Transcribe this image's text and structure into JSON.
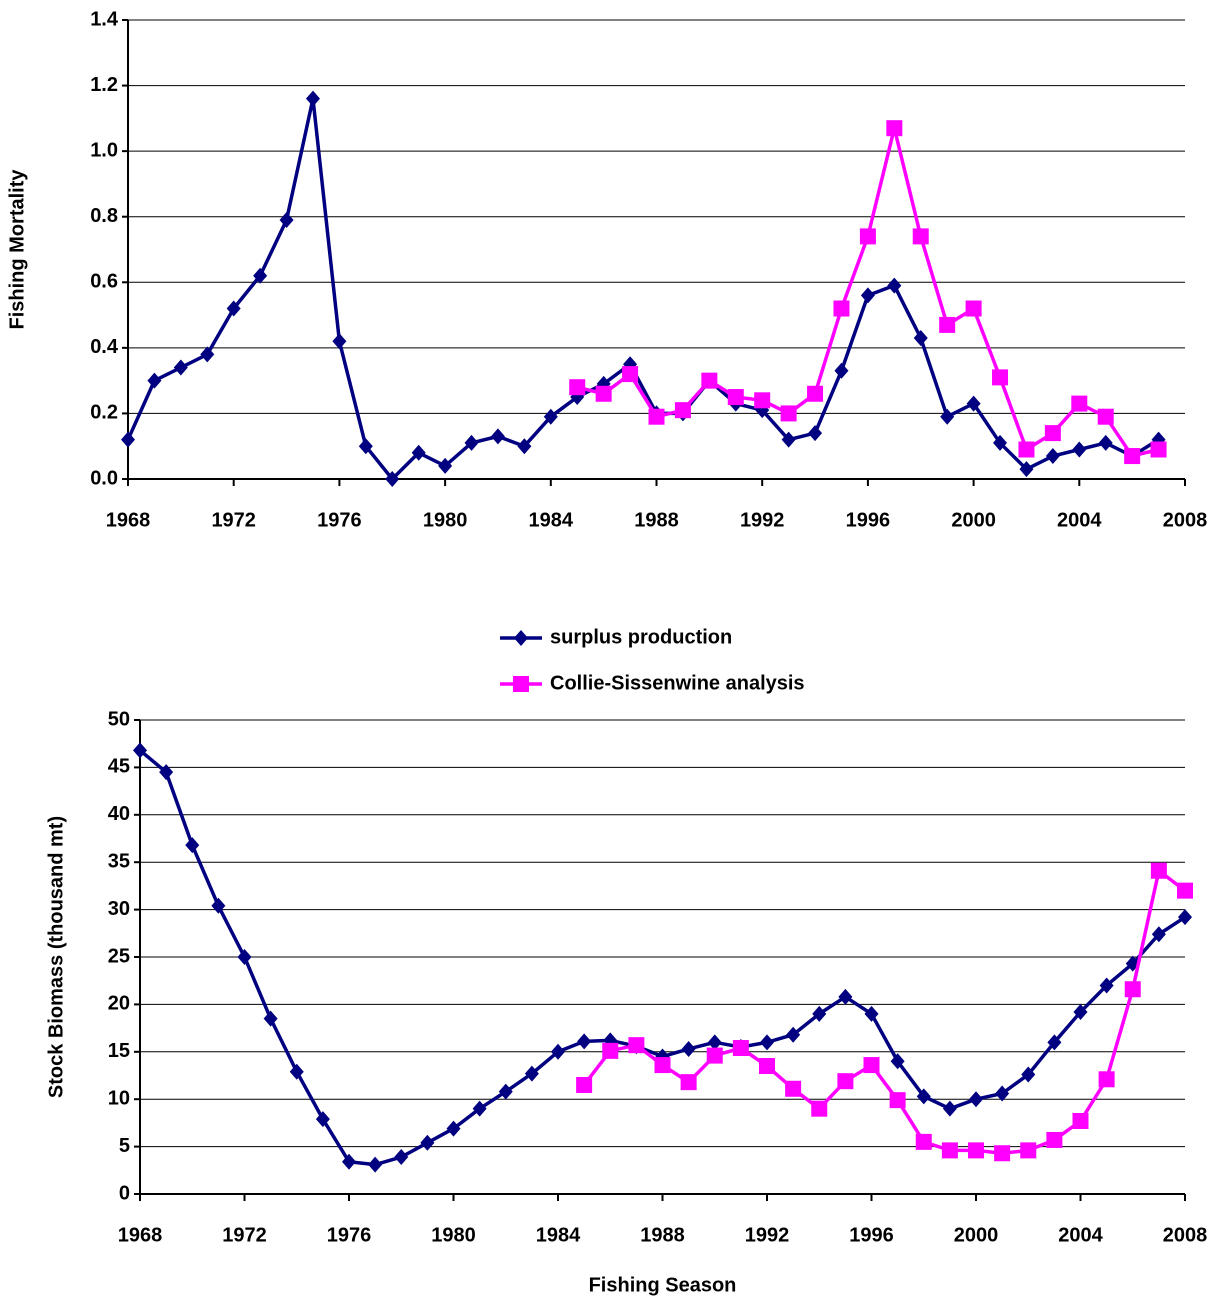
{
  "chart_data": [
    {
      "type": "line",
      "ylabel": "Fishing Mortality",
      "x": [
        1968,
        1969,
        1970,
        1971,
        1972,
        1973,
        1974,
        1975,
        1976,
        1977,
        1978,
        1979,
        1980,
        1981,
        1982,
        1983,
        1984,
        1985,
        1986,
        1987,
        1988,
        1989,
        1990,
        1991,
        1992,
        1993,
        1994,
        1995,
        1996,
        1997,
        1998,
        1999,
        2000,
        2001,
        2002,
        2003,
        2004,
        2005,
        2006,
        2007
      ],
      "series": [
        {
          "name": "surplus production",
          "color": "#000080",
          "marker": "diamond",
          "values": [
            0.12,
            0.3,
            0.34,
            0.38,
            0.52,
            0.62,
            0.79,
            1.16,
            0.42,
            0.1,
            0.0,
            0.08,
            0.04,
            0.11,
            0.13,
            0.1,
            0.19,
            0.25,
            0.29,
            0.35,
            0.2,
            0.2,
            0.3,
            0.23,
            0.21,
            0.12,
            0.14,
            0.33,
            0.56,
            0.59,
            0.43,
            0.19,
            0.23,
            0.11,
            0.03,
            0.07,
            0.09,
            0.11,
            0.07,
            0.12
          ]
        },
        {
          "name": "Collie-Sissenwine analysis",
          "color": "#ff00ff",
          "marker": "square",
          "values": [
            null,
            null,
            null,
            null,
            null,
            null,
            null,
            null,
            null,
            null,
            null,
            null,
            null,
            null,
            null,
            null,
            null,
            0.28,
            0.26,
            0.32,
            0.19,
            0.21,
            0.3,
            0.25,
            0.24,
            0.2,
            0.26,
            0.52,
            0.74,
            1.07,
            0.74,
            0.47,
            0.52,
            0.31,
            0.09,
            0.14,
            0.23,
            0.19,
            0.07,
            0.09
          ]
        }
      ],
      "xlim": [
        1968,
        2008
      ],
      "xticks": [
        1968,
        1972,
        1976,
        1980,
        1984,
        1988,
        1992,
        1996,
        2000,
        2004,
        2008
      ],
      "ylim": [
        0,
        1.4
      ],
      "yticks": [
        {
          "value": 0,
          "label": "0.0"
        },
        0.2,
        0.4,
        0.6,
        0.8,
        {
          "value": 1,
          "label": "1.0"
        },
        1.2,
        1.4
      ],
      "grid": true
    },
    {
      "type": "line",
      "ylabel": "Stock Biomass (thousand mt)",
      "xlabel": "Fishing Season",
      "x": [
        1968,
        1969,
        1970,
        1971,
        1972,
        1973,
        1974,
        1975,
        1976,
        1977,
        1978,
        1979,
        1980,
        1981,
        1982,
        1983,
        1984,
        1985,
        1986,
        1987,
        1988,
        1989,
        1990,
        1991,
        1992,
        1993,
        1994,
        1995,
        1996,
        1997,
        1998,
        1999,
        2000,
        2001,
        2002,
        2003,
        2004,
        2005,
        2006,
        2007,
        2008
      ],
      "series": [
        {
          "name": "surplus production",
          "color": "#000080",
          "marker": "diamond",
          "values": [
            46.8,
            44.5,
            36.8,
            30.4,
            25.0,
            18.5,
            12.9,
            7.9,
            3.4,
            3.1,
            3.9,
            5.4,
            6.9,
            9.0,
            10.8,
            12.7,
            15.0,
            16.1,
            16.2,
            15.6,
            14.5,
            15.3,
            16.0,
            15.5,
            16.0,
            16.8,
            19.0,
            20.8,
            19.0,
            14.0,
            10.3,
            9.0,
            10.0,
            10.6,
            12.6,
            16.0,
            19.2,
            22.0,
            24.3,
            27.4,
            29.2
          ]
        },
        {
          "name": "Collie-Sissenwine analysis",
          "color": "#ff00ff",
          "marker": "square",
          "values": [
            null,
            null,
            null,
            null,
            null,
            null,
            null,
            null,
            null,
            null,
            null,
            null,
            null,
            null,
            null,
            null,
            null,
            11.5,
            15.1,
            15.7,
            13.6,
            11.8,
            14.6,
            15.4,
            13.5,
            11.1,
            9.0,
            11.9,
            13.6,
            9.9,
            5.5,
            4.6,
            4.6,
            4.3,
            4.6,
            5.7,
            7.7,
            12.1,
            21.6,
            34.1,
            32.0
          ]
        }
      ],
      "xlim": [
        1968,
        2008
      ],
      "xticks": [
        1968,
        1972,
        1976,
        1980,
        1984,
        1988,
        1992,
        1996,
        2000,
        2004,
        2008
      ],
      "ylim": [
        0,
        50
      ],
      "yticks": [
        0,
        5,
        10,
        15,
        20,
        25,
        30,
        35,
        40,
        45,
        50
      ],
      "grid": true,
      "legend": "top"
    }
  ]
}
